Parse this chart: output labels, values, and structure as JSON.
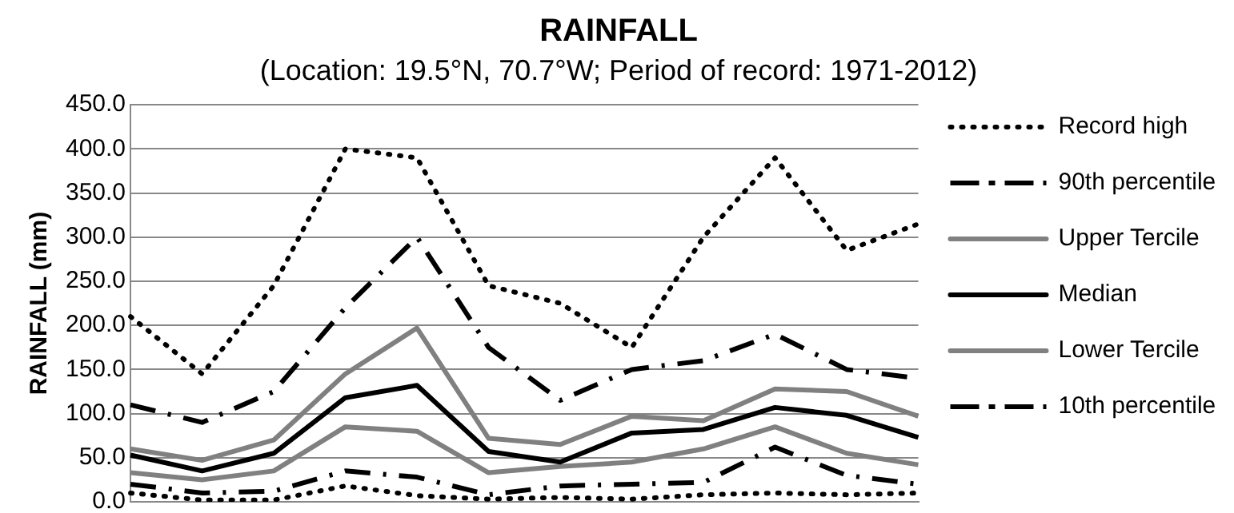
{
  "chart_data": {
    "type": "line",
    "title": "RAINFALL",
    "subtitle": "(Location: 19.5°N, 70.7°W; Period of record: 1971-2012)",
    "ylabel": "RAINFALL (mm)",
    "categories": [
      null,
      null,
      null,
      null,
      null,
      null,
      null,
      null,
      null,
      null,
      null,
      null
    ],
    "series": [
      {
        "name": "Record high",
        "color": "#000000",
        "line_style": "dotted",
        "values": [
          210,
          145,
          245,
          400,
          390,
          245,
          225,
          175,
          300,
          390,
          285,
          315
        ]
      },
      {
        "name": "90th percentile",
        "color": "#000000",
        "line_style": "dashed",
        "values": [
          110,
          90,
          125,
          220,
          300,
          175,
          115,
          150,
          160,
          190,
          150,
          140
        ]
      },
      {
        "name": "Upper Tercile",
        "color": "#808080",
        "line_style": "solid",
        "values": [
          60,
          47,
          70,
          145,
          197,
          72,
          65,
          97,
          92,
          128,
          125,
          97
        ]
      },
      {
        "name": "Median",
        "color": "#000000",
        "line_style": "solid",
        "values": [
          53,
          35,
          55,
          118,
          132,
          57,
          45,
          78,
          82,
          107,
          98,
          73
        ]
      },
      {
        "name": "Lower Tercile",
        "color": "#808080",
        "line_style": "solid",
        "values": [
          33,
          25,
          35,
          85,
          80,
          33,
          40,
          45,
          60,
          85,
          55,
          42
        ]
      },
      {
        "name": "10th percentile",
        "color": "#000000",
        "line_style": "dashed",
        "values": [
          20,
          10,
          12,
          35,
          28,
          8,
          18,
          20,
          22,
          62,
          30,
          20
        ]
      },
      {
        "color": "#000000",
        "line_style": "dotted",
        "values": [
          10,
          2,
          2,
          18,
          7,
          3,
          5,
          3,
          8,
          10,
          8,
          10
        ]
      }
    ],
    "ylim": [
      0,
      450
    ],
    "yticks": [
      {
        "value": 0,
        "label": "0.0"
      },
      {
        "value": 50,
        "label": "50.0"
      },
      {
        "value": 100,
        "label": "100.0"
      },
      {
        "value": 150,
        "label": "150.0"
      },
      {
        "value": 200,
        "label": "200.0"
      },
      {
        "value": 250,
        "label": "250.0"
      },
      {
        "value": 300,
        "label": "300.0"
      },
      {
        "value": 350,
        "label": "350.0"
      },
      {
        "value": 400,
        "label": "400.0"
      },
      {
        "value": 450,
        "label": "450.0"
      }
    ],
    "grid": "y",
    "legend": "right",
    "marker": "none"
  }
}
